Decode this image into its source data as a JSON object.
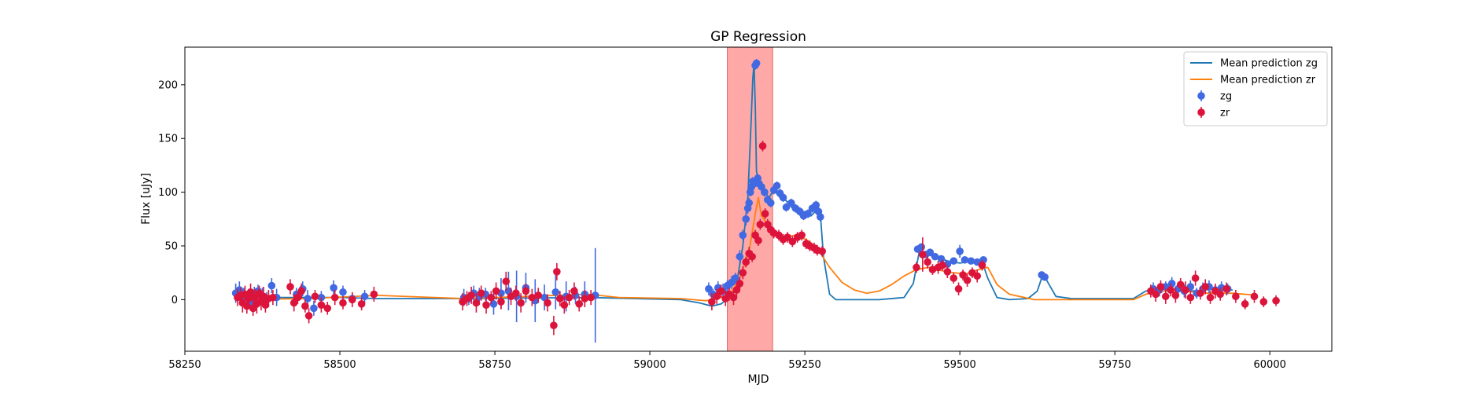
{
  "chart_data": {
    "type": "scatter",
    "title": "GP Regression",
    "xlabel": "MJD",
    "ylabel": "Flux [uJy]",
    "xlim": [
      58250,
      60100
    ],
    "ylim": [
      -48,
      235
    ],
    "xticks": [
      58250,
      58500,
      58750,
      59000,
      59250,
      59500,
      59750,
      60000
    ],
    "yticks": [
      0,
      50,
      100,
      150,
      200
    ],
    "grid": false,
    "legend_position": "upper right",
    "shaded_region": {
      "x": [
        59125,
        59198
      ],
      "color": "#ff9999"
    },
    "series": [
      {
        "name": "Mean prediction zg",
        "kind": "line",
        "color": "#1f77b4",
        "x": [
          58330,
          58450,
          58500,
          58560,
          58700,
          58900,
          59050,
          59080,
          59100,
          59115,
          59130,
          59140,
          59150,
          59158,
          59163,
          59166,
          59168,
          59170,
          59172,
          59175,
          59180,
          59186,
          59192,
          59200,
          59210,
          59220,
          59230,
          59240,
          59250,
          59260,
          59270,
          59275,
          59280,
          59290,
          59300,
          59330,
          59370,
          59410,
          59425,
          59435,
          59445,
          59460,
          59480,
          59500,
          59520,
          59535,
          59545,
          59560,
          59580,
          59610,
          59625,
          59633,
          59640,
          59655,
          59680,
          59720,
          59780,
          59800,
          59820,
          59850,
          59880,
          59910,
          59940
        ],
        "y": [
          2,
          2,
          2,
          1,
          1,
          2,
          0,
          -3,
          -6,
          -4,
          3,
          15,
          50,
          95,
          160,
          205,
          220,
          180,
          120,
          108,
          110,
          100,
          95,
          102,
          95,
          92,
          85,
          80,
          82,
          78,
          84,
          80,
          40,
          5,
          0,
          0,
          0,
          2,
          15,
          46,
          42,
          40,
          36,
          34,
          36,
          37,
          20,
          2,
          0,
          1,
          8,
          22,
          18,
          3,
          1,
          1,
          1,
          8,
          10,
          9,
          8,
          10,
          9
        ]
      },
      {
        "name": "Mean prediction zr",
        "kind": "line",
        "color": "#ff7f0e",
        "x": [
          58330,
          58450,
          58560,
          58700,
          58900,
          58950,
          59050,
          59090,
          59110,
          59130,
          59145,
          59160,
          59170,
          59175,
          59180,
          59190,
          59200,
          59215,
          59235,
          59255,
          59270,
          59290,
          59310,
          59330,
          59350,
          59370,
          59390,
          59410,
          59430,
          59450,
          59470,
          59490,
          59510,
          59530,
          59545,
          59560,
          59580,
          59620,
          59700,
          59780,
          59800,
          59820,
          59860,
          59900,
          59940,
          59980
        ],
        "y": [
          0,
          1,
          4,
          1,
          5,
          2,
          1,
          -1,
          1,
          5,
          20,
          45,
          80,
          95,
          78,
          70,
          62,
          58,
          60,
          55,
          48,
          30,
          16,
          9,
          6,
          8,
          14,
          22,
          28,
          30,
          27,
          25,
          24,
          28,
          30,
          14,
          5,
          0,
          0,
          0,
          5,
          8,
          8,
          6,
          6,
          4
        ]
      },
      {
        "name": "zg",
        "kind": "errorbar",
        "color": "#4169e1",
        "x": [
          58332,
          58338,
          58345,
          58352,
          58358,
          58362,
          58368,
          58375,
          58382,
          58390,
          58398,
          58430,
          58440,
          58448,
          58458,
          58470,
          58490,
          58505,
          58520,
          58540,
          58700,
          58708,
          58716,
          58725,
          58735,
          58748,
          58760,
          58772,
          58785,
          58800,
          58815,
          58830,
          58848,
          58865,
          58880,
          58895,
          58912,
          59095,
          59102,
          59110,
          59118,
          59125,
          59132,
          59138,
          59145,
          59150,
          59155,
          59158,
          59160,
          59162,
          59164,
          59166,
          59168,
          59170,
          59172,
          59174,
          59176,
          59180,
          59185,
          59190,
          59195,
          59200,
          59205,
          59210,
          59215,
          59220,
          59228,
          59235,
          59242,
          59248,
          59255,
          59262,
          59268,
          59272,
          59275,
          59432,
          59438,
          59445,
          59452,
          59460,
          59470,
          59480,
          59490,
          59500,
          59508,
          59518,
          59528,
          59538,
          59632,
          59637,
          59812,
          59822,
          59832,
          59842,
          59852,
          59862,
          59872,
          59882,
          59892,
          59902,
          59912,
          59922,
          59932
        ],
        "y": [
          6,
          9,
          4,
          2,
          -3,
          5,
          8,
          3,
          1,
          13,
          2,
          5,
          10,
          1,
          -8,
          2,
          11,
          7,
          1,
          3,
          2,
          1,
          6,
          3,
          5,
          -4,
          6,
          8,
          3,
          11,
          -1,
          2,
          7,
          3,
          4,
          5,
          4,
          10,
          5,
          11,
          8,
          13,
          16,
          20,
          40,
          60,
          75,
          85,
          90,
          100,
          105,
          110,
          108,
          218,
          220,
          113,
          108,
          105,
          100,
          93,
          90,
          102,
          106,
          99,
          95,
          86,
          90,
          85,
          82,
          78,
          80,
          85,
          88,
          82,
          77,
          47,
          49,
          42,
          44,
          40,
          38,
          33,
          36,
          45,
          37,
          36,
          35,
          37,
          23,
          21,
          10,
          9,
          12,
          15,
          10,
          8,
          12,
          6,
          10,
          12,
          9,
          11,
          10
        ],
        "yerr": [
          9,
          8,
          7,
          6,
          8,
          7,
          6,
          8,
          6,
          7,
          8,
          6,
          7,
          8,
          7,
          6,
          7,
          6,
          5,
          6,
          8,
          6,
          7,
          8,
          6,
          10,
          14,
          18,
          24,
          14,
          20,
          12,
          16,
          14,
          8,
          12,
          44,
          6,
          5,
          6,
          7,
          5,
          6,
          5,
          6,
          5,
          6,
          5,
          5,
          4,
          4,
          4,
          4,
          4,
          4,
          4,
          4,
          4,
          4,
          4,
          4,
          4,
          4,
          4,
          4,
          4,
          4,
          4,
          4,
          4,
          4,
          4,
          4,
          4,
          4,
          3,
          3,
          3,
          3,
          3,
          3,
          3,
          3,
          6,
          3,
          3,
          3,
          3,
          3,
          3,
          6,
          6,
          5,
          6,
          5,
          6,
          6,
          5,
          6,
          6,
          5,
          6,
          5
        ]
      },
      {
        "name": "zr",
        "kind": "errorbar",
        "color": "#dc143c",
        "x": [
          58335,
          58340,
          58343,
          58347,
          58350,
          58353,
          58356,
          58360,
          58363,
          58366,
          58370,
          58373,
          58377,
          58380,
          58385,
          58392,
          58420,
          58426,
          58432,
          58438,
          58444,
          58450,
          58460,
          58470,
          58480,
          58492,
          58505,
          58520,
          58535,
          58555,
          58698,
          58705,
          58712,
          58720,
          58728,
          58736,
          58744,
          58752,
          58760,
          58768,
          58776,
          58784,
          58792,
          58800,
          58810,
          58820,
          58835,
          58845,
          58850,
          58855,
          58862,
          58870,
          58878,
          58886,
          58895,
          58905,
          59100,
          59108,
          59115,
          59122,
          59128,
          59135,
          59140,
          59145,
          59150,
          59155,
          59160,
          59165,
          59170,
          59175,
          59178,
          59182,
          59186,
          59190,
          59195,
          59200,
          59208,
          59215,
          59222,
          59230,
          59238,
          59245,
          59252,
          59258,
          59265,
          59270,
          59278,
          59430,
          59440,
          59448,
          59456,
          59465,
          59472,
          59480,
          59490,
          59498,
          59505,
          59512,
          59520,
          59528,
          59536,
          59808,
          59816,
          59824,
          59832,
          59840,
          59848,
          59856,
          59864,
          59872,
          59880,
          59888,
          59896,
          59904,
          59912,
          59920,
          59930,
          59945,
          59960,
          59975,
          59990,
          60010
        ],
        "y": [
          2,
          4,
          -3,
          5,
          -6,
          1,
          7,
          -8,
          2,
          -4,
          6,
          -2,
          3,
          -5,
          1,
          2,
          12,
          -3,
          2,
          8,
          -6,
          -15,
          3,
          -5,
          -8,
          2,
          -3,
          0,
          -4,
          5,
          -2,
          1,
          4,
          -3,
          6,
          -5,
          2,
          8,
          -2,
          17,
          3,
          6,
          -3,
          8,
          2,
          4,
          -3,
          -24,
          26,
          1,
          -5,
          2,
          8,
          -4,
          1,
          2,
          -2,
          3,
          8,
          1,
          5,
          2,
          9,
          15,
          25,
          35,
          43,
          40,
          60,
          55,
          70,
          143,
          80,
          70,
          65,
          62,
          60,
          56,
          58,
          54,
          58,
          60,
          52,
          50,
          48,
          46,
          45,
          30,
          42,
          35,
          28,
          30,
          32,
          26,
          20,
          10,
          23,
          18,
          25,
          22,
          32,
          8,
          5,
          12,
          3,
          9,
          4,
          14,
          9,
          2,
          20,
          6,
          12,
          2,
          8,
          5,
          10,
          3,
          -4,
          3,
          -2,
          -1
        ],
        "yerr": [
          8,
          7,
          9,
          8,
          7,
          9,
          8,
          7,
          8,
          9,
          7,
          8,
          9,
          7,
          8,
          7,
          7,
          8,
          6,
          7,
          6,
          7,
          6,
          7,
          6,
          7,
          6,
          7,
          6,
          7,
          8,
          7,
          8,
          9,
          7,
          8,
          6,
          8,
          7,
          9,
          8,
          7,
          9,
          7,
          8,
          7,
          8,
          9,
          8,
          7,
          8,
          7,
          8,
          7,
          8,
          7,
          8,
          7,
          6,
          7,
          6,
          7,
          6,
          6,
          6,
          5,
          6,
          5,
          5,
          5,
          5,
          5,
          5,
          5,
          5,
          5,
          5,
          5,
          5,
          5,
          5,
          5,
          5,
          5,
          5,
          5,
          5,
          5,
          16,
          6,
          5,
          6,
          5,
          6,
          5,
          6,
          5,
          6,
          5,
          6,
          5,
          6,
          7,
          6,
          7,
          6,
          7,
          6,
          8,
          6,
          7,
          6,
          7,
          6,
          7,
          6,
          6,
          6,
          5,
          6,
          5,
          5
        ]
      }
    ]
  }
}
